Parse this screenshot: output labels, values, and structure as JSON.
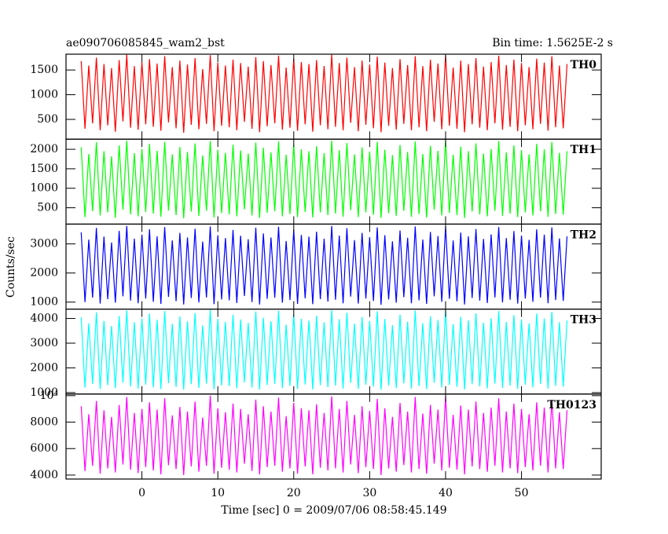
{
  "chart_data": {
    "type": "line",
    "title": "ae090706085845_wam2_bst",
    "subtitle": "Bin time: 1.5625E-2 s",
    "x_label": "Time [sec] 0 = 2009/07/06 08:58:45.149",
    "y_label": "Counts/sec",
    "xlim": [
      -10,
      60.5
    ],
    "xticks": [
      0,
      10,
      20,
      30,
      40,
      50
    ],
    "x": [
      -8,
      -7.5,
      -7,
      -6.5,
      -6,
      -5.5,
      -5,
      -4.5,
      -4,
      -3.5,
      -3,
      -2.5,
      -2,
      -1.5,
      -1,
      -0.5,
      0,
      0.5,
      1,
      1.5,
      2,
      2.5,
      3,
      3.5,
      4,
      4.5,
      5,
      5.5,
      6,
      6.5,
      7,
      7.5,
      8,
      8.5,
      9,
      9.5,
      10,
      10.5,
      11,
      11.5,
      12,
      12.5,
      13,
      13.5,
      14,
      14.5,
      15,
      15.5,
      16,
      16.5,
      17,
      17.5,
      18,
      18.5,
      19,
      19.5,
      20,
      20.5,
      21,
      21.5,
      22,
      22.5,
      23,
      23.5,
      24,
      24.5,
      25,
      25.5,
      26,
      26.5,
      27,
      27.5,
      28,
      28.5,
      29,
      29.5,
      30,
      30.5,
      31,
      31.5,
      32,
      32.5,
      33,
      33.5,
      34,
      34.5,
      35,
      35.5,
      36,
      36.5,
      37,
      37.5,
      38,
      38.5,
      39,
      39.5,
      40,
      40.5,
      41,
      41.5,
      42,
      42.5,
      43,
      43.5,
      44,
      44.5,
      45,
      45.5,
      46,
      46.5,
      47,
      47.5,
      48,
      48.5,
      49,
      49.5,
      50,
      50.5,
      51,
      51.5,
      52,
      52.5,
      53,
      53.5,
      54,
      54.5,
      55,
      55.5,
      56
    ],
    "series": [
      {
        "name": "TH0",
        "color": "#ff0000",
        "ylim": [
          100,
          1820
        ],
        "yticks": [
          500,
          1000,
          1500
        ],
        "values": [
          1680,
          310,
          1590,
          420,
          1750,
          280,
          1620,
          380,
          1540,
          250,
          1700,
          460,
          1810,
          330,
          1580,
          290,
          1660,
          400,
          1720,
          350,
          1630,
          270,
          1780,
          440,
          1560,
          320,
          1690,
          230,
          1610,
          390,
          1740,
          300,
          1520,
          410,
          1800,
          260,
          1650,
          370,
          1590,
          340,
          1710,
          280,
          1640,
          450,
          1570,
          310,
          1760,
          240,
          1680,
          360,
          1600,
          420,
          1790,
          290,
          1550,
          330,
          1730,
          270,
          1660,
          400,
          1620,
          250,
          1700,
          380,
          1580,
          300,
          1810,
          350,
          1640,
          280,
          1750,
          430,
          1560,
          260,
          1690,
          390,
          1610,
          320,
          1770,
          240,
          1650,
          370,
          1540,
          290,
          1720,
          410,
          1600,
          280,
          1780,
          340,
          1580,
          260,
          1710,
          450,
          1630,
          300,
          1800,
          370,
          1550,
          310,
          1690,
          240,
          1620,
          400,
          1740,
          330,
          1570,
          280,
          1660,
          420,
          1790,
          290,
          1600,
          350,
          1710,
          260,
          1640,
          380,
          1560,
          300,
          1730,
          410,
          1650,
          270,
          1780,
          340,
          1590,
          320,
          1620
        ]
      },
      {
        "name": "TH1",
        "color": "#00ff00",
        "ylim": [
          80,
          2260
        ],
        "yticks": [
          500,
          1000,
          1500,
          2000
        ],
        "values": [
          2050,
          260,
          1880,
          410,
          2180,
          300,
          1950,
          380,
          1820,
          240,
          2100,
          450,
          2220,
          330,
          1900,
          280,
          2010,
          390,
          2140,
          350,
          1960,
          270,
          2190,
          430,
          1870,
          310,
          2060,
          230,
          1930,
          400,
          2150,
          290,
          1840,
          420,
          2210,
          250,
          1990,
          360,
          1910,
          330,
          2120,
          280,
          1970,
          460,
          1890,
          300,
          2170,
          240,
          2040,
          370,
          1920,
          410,
          2200,
          280,
          1860,
          340,
          2130,
          260,
          2000,
          390,
          1950,
          250,
          2080,
          380,
          1900,
          310,
          2220,
          350,
          1980,
          270,
          2160,
          440,
          1870,
          260,
          2050,
          380,
          1940,
          320,
          2190,
          240,
          1990,
          360,
          1850,
          290,
          2110,
          420,
          1930,
          270,
          2200,
          340,
          1880,
          250,
          2090,
          450,
          1960,
          300,
          2230,
          370,
          1860,
          310,
          2070,
          240,
          1950,
          400,
          2150,
          330,
          1890,
          280,
          2010,
          420,
          2210,
          290,
          1920,
          350,
          2100,
          260,
          1980,
          380,
          1870,
          300,
          2140,
          410,
          2000,
          270,
          2190,
          340,
          1910,
          320,
          1950
        ]
      },
      {
        "name": "TH2",
        "color": "#0000ff",
        "ylim": [
          760,
          3680
        ],
        "yticks": [
          1000,
          2000,
          3000
        ],
        "values": [
          3400,
          1000,
          3150,
          1150,
          3550,
          950,
          3250,
          1100,
          3050,
          980,
          3450,
          1200,
          3620,
          1050,
          3180,
          960,
          3320,
          1120,
          3500,
          1010,
          3260,
          940,
          3580,
          1180,
          3120,
          1030,
          3380,
          920,
          3220,
          1140,
          3520,
          990,
          3080,
          1160,
          3600,
          930,
          3300,
          1090,
          3200,
          1060,
          3480,
          970,
          3280,
          1210,
          3160,
          1000,
          3560,
          920,
          3360,
          1110,
          3220,
          1150,
          3590,
          980,
          3100,
          1070,
          3490,
          940,
          3310,
          1130,
          3250,
          930,
          3420,
          1100,
          3180,
          1020,
          3620,
          1080,
          3290,
          960,
          3540,
          1190,
          3130,
          950,
          3380,
          1120,
          3230,
          1040,
          3570,
          910,
          3300,
          1090,
          3090,
          980,
          3460,
          1170,
          3210,
          960,
          3600,
          1060,
          3150,
          940,
          3410,
          1200,
          3270,
          1010,
          3610,
          1110,
          3120,
          1030,
          3390,
          920,
          3260,
          1140,
          3510,
          1050,
          3170,
          970,
          3330,
          1160,
          3580,
          990,
          3200,
          1080,
          3440,
          950,
          3290,
          1120,
          3140,
          1010,
          3500,
          1150,
          3320,
          960,
          3570,
          1070,
          3190,
          1040,
          3260
        ]
      },
      {
        "name": "TH3",
        "color": "#00ffff",
        "ylim": [
          940,
          4380
        ],
        "yticks": [
          1000,
          2000,
          3000,
          4000
        ],
        "values": [
          4050,
          1200,
          3800,
          1350,
          4250,
          1150,
          3900,
          1300,
          3700,
          1180,
          4100,
          1400,
          4330,
          1250,
          3850,
          1160,
          4000,
          1320,
          4200,
          1210,
          3950,
          1140,
          4300,
          1380,
          3780,
          1230,
          4080,
          1120,
          3880,
          1340,
          4220,
          1190,
          3720,
          1360,
          4350,
          1130,
          3980,
          1290,
          3860,
          1260,
          4150,
          1170,
          3960,
          1410,
          3820,
          1200,
          4280,
          1120,
          4030,
          1310,
          3890,
          1350,
          4310,
          1180,
          3750,
          1270,
          4180,
          1140,
          3990,
          1330,
          3920,
          1130,
          4110,
          1300,
          3840,
          1220,
          4340,
          1280,
          3970,
          1160,
          4240,
          1390,
          3790,
          1150,
          4060,
          1320,
          3900,
          1240,
          4290,
          1110,
          3980,
          1290,
          3730,
          1180,
          4160,
          1370,
          3870,
          1160,
          4320,
          1260,
          3810,
          1140,
          4090,
          1400,
          3940,
          1210,
          4330,
          1310,
          3770,
          1230,
          4070,
          1120,
          3930,
          1340,
          4210,
          1250,
          3830,
          1170,
          4010,
          1360,
          4300,
          1190,
          3860,
          1280,
          4130,
          1150,
          3960,
          1320,
          3800,
          1210,
          4200,
          1350,
          4000,
          1160,
          4270,
          1270,
          3850,
          1240,
          3920
        ]
      },
      {
        "name": "TH0123",
        "color": "#ff00ff",
        "ylim": [
          3700,
          10120
        ],
        "yticks": [
          4000,
          6000,
          8000,
          {
            "value": 10000,
            "label": "10⁴"
          }
        ],
        "values": [
          9200,
          4300,
          8600,
          4700,
          9600,
          4100,
          8900,
          4500,
          8400,
          4200,
          9300,
          4800,
          9900,
          4400,
          8700,
          4150,
          9000,
          4600,
          9500,
          4350,
          8950,
          4050,
          9800,
          4750,
          8500,
          4450,
          9150,
          4000,
          8800,
          4650,
          9550,
          4250,
          8350,
          4700,
          10000,
          4100,
          9050,
          4550,
          8750,
          4400,
          9400,
          4200,
          9000,
          4850,
          8600,
          4300,
          9700,
          4050,
          9200,
          4600,
          8800,
          4700,
          9850,
          4250,
          8450,
          4500,
          9450,
          4100,
          9050,
          4650,
          8900,
          4050,
          9350,
          4550,
          8700,
          4350,
          9950,
          4500,
          9000,
          4200,
          9600,
          4800,
          8550,
          4150,
          9200,
          4600,
          8850,
          4450,
          9750,
          4000,
          9050,
          4500,
          8400,
          4250,
          9450,
          4750,
          8800,
          4200,
          9900,
          4450,
          8650,
          4100,
          9300,
          4850,
          8950,
          4350,
          9950,
          4550,
          8550,
          4400,
          9250,
          4050,
          8950,
          4650,
          9550,
          4450,
          8700,
          4250,
          9100,
          4700,
          9800,
          4200,
          8800,
          4500,
          9400,
          4150,
          9000,
          4600,
          8600,
          4350,
          9500,
          4700,
          9100,
          4200,
          9700,
          4500,
          8750,
          4450,
          8900
        ]
      }
    ]
  }
}
